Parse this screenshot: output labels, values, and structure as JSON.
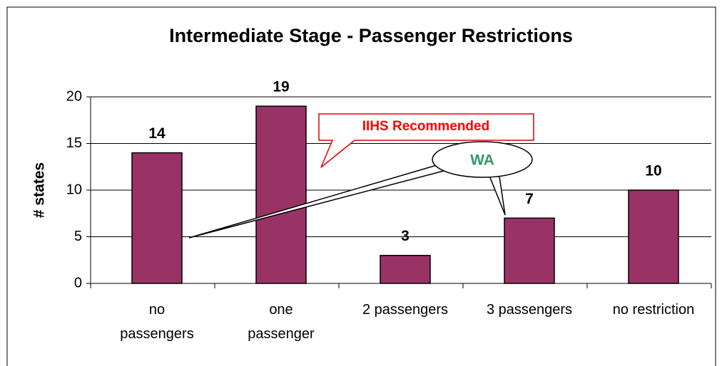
{
  "chart_data": {
    "type": "bar",
    "title": "Intermediate Stage - Passenger Restrictions",
    "ylabel": "# states",
    "categories": [
      "no\npassengers",
      "one\npassenger",
      "2 passengers",
      "3 passengers",
      "no restriction"
    ],
    "values": [
      14,
      19,
      3,
      7,
      10
    ],
    "color": "#993366",
    "ylim": [
      0,
      20
    ],
    "yticks": [
      0,
      5,
      10,
      15,
      20
    ],
    "grid": true,
    "annotations": [
      "IIHS Recommended",
      "WA"
    ]
  }
}
